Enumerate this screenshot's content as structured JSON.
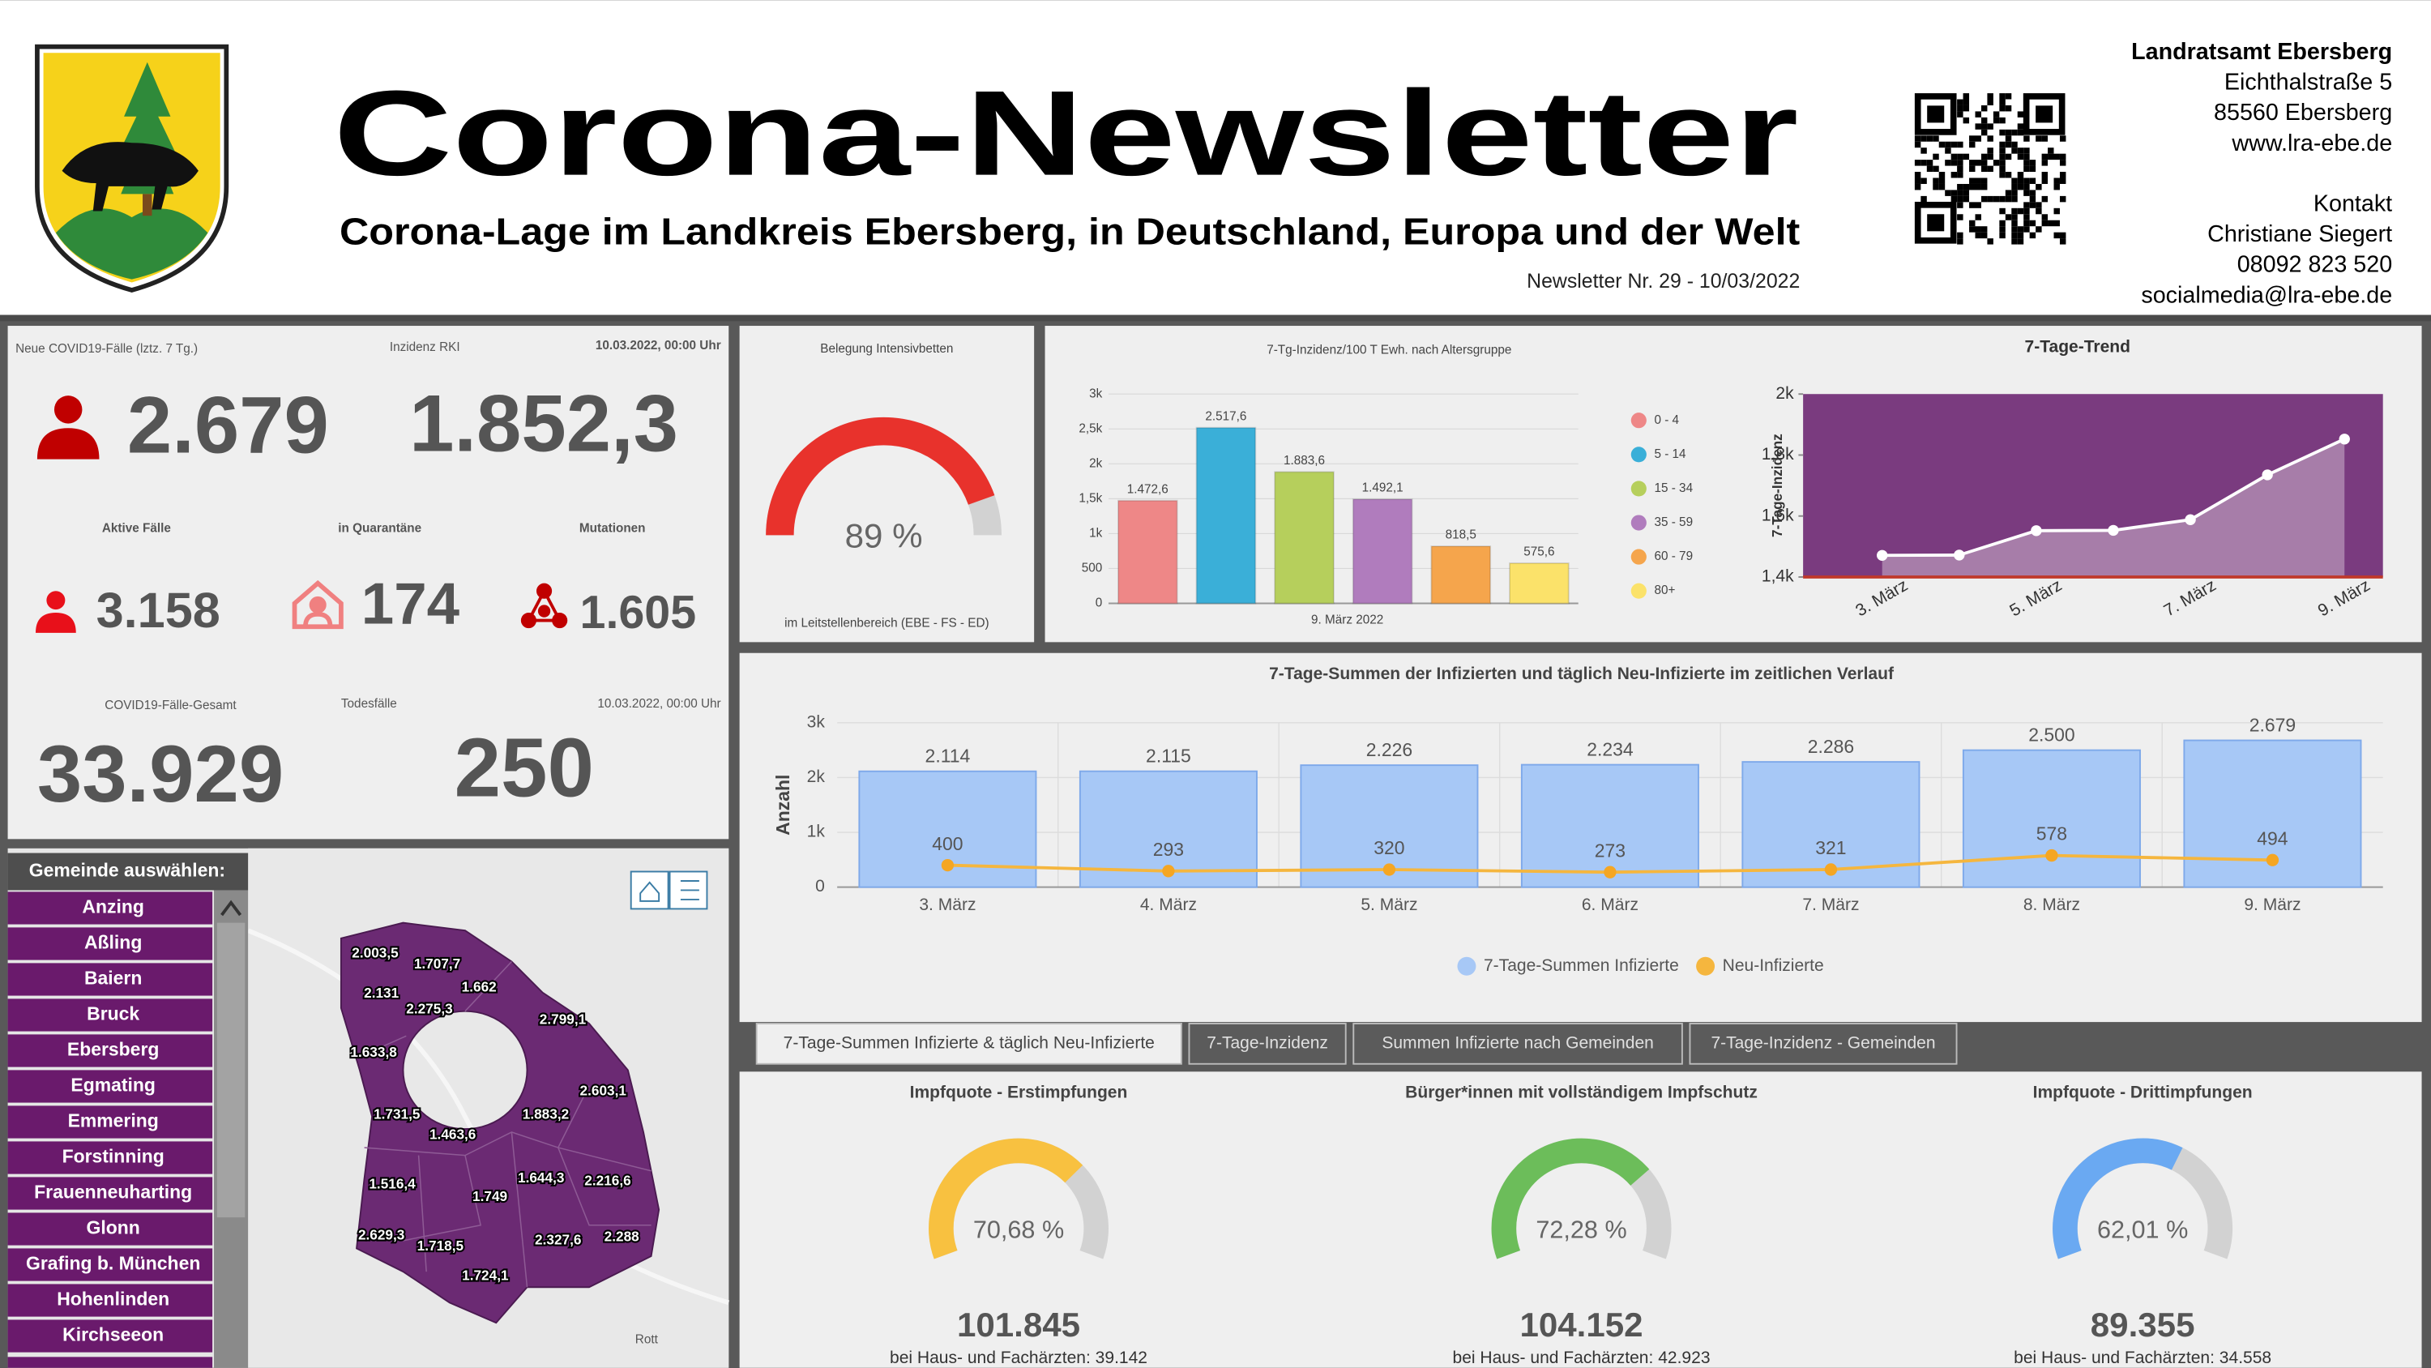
{
  "header": {
    "title": "Corona-Newsletter",
    "subtitle": "Corona-Lage im Landkreis Ebersberg, in Deutschland, Europa und der Welt",
    "issue": "Newsletter Nr. 29 - 10/03/2022",
    "address": [
      "Landratsamt Ebersberg",
      "Eichthalstraße 5",
      "85560 Ebersberg",
      "www.lra-ebe.de"
    ],
    "contact": [
      "Kontakt",
      "Christiane Siegert",
      "08092 823 520",
      "socialmedia@lra-ebe.de"
    ]
  },
  "cases_panel": {
    "new_cases_label": "Neue COVID19-Fälle (lztz. 7 Tg.)",
    "incidence_label": "Inzidenz RKI",
    "timestamp": "10.03.2022, 00:00 Uhr",
    "new_cases": "2.679",
    "incidence": "1.852,3",
    "active_label": "Aktive Fälle",
    "active": "3.158",
    "quarantine_label": "in Quarantäne",
    "quarantine": "174",
    "mutations_label": "Mutationen",
    "mutations": "1.605",
    "total_label": "COVID19-Fälle-Gesamt",
    "total": "33.929",
    "deaths_label": "Todesfälle",
    "deaths": "250",
    "timestamp_2": "10.03.2022, 00:00 Uhr"
  },
  "icu": {
    "type": "gauge",
    "title": "Belegung Intensivbetten",
    "value": 89,
    "value_label": "89 %",
    "color": "#e8322c",
    "footnote": "im Leitstellenbereich (EBE - FS - ED)"
  },
  "age_chart": {
    "type": "bar",
    "title": "7-Tg-Inzidenz/100 T Ewh. nach Altersgruppe",
    "categories": [
      "0 - 4",
      "5 - 14",
      "15 - 34",
      "35 - 59",
      "60 - 79",
      "80+"
    ],
    "values": [
      1472.6,
      2517.6,
      1883.6,
      1492.1,
      818.5,
      575.6
    ],
    "value_labels": [
      "1.472,6",
      "2.517,6",
      "1.883,6",
      "1.492,1",
      "818,5",
      "575,6"
    ],
    "colors": [
      "#ee8787",
      "#3aafd8",
      "#b6cf5c",
      "#b07cbd",
      "#f5a54c",
      "#fbe26a"
    ],
    "xlabel": "9. März 2022",
    "ylim": [
      0,
      3000
    ],
    "yticks": [
      0,
      500,
      {
        "value": 1000,
        "label": "1k"
      },
      {
        "value": 1500,
        "label": "1,5k"
      },
      {
        "value": 2000,
        "label": "2k"
      },
      {
        "value": 2500,
        "label": "2,5k"
      },
      {
        "value": 3000,
        "label": "3k"
      }
    ],
    "grid": true
  },
  "trend_chart": {
    "type": "area",
    "title": "7-Tage-Trend",
    "ylabel": "7-Tage-Inzidenz",
    "categories": [
      "3. März",
      null,
      "5. März",
      null,
      "7. März",
      null,
      "9. März"
    ],
    "values": [
      1471,
      1472,
      1552,
      1553,
      1588,
      1735,
      1852.3
    ],
    "ylim": [
      1400,
      2000
    ],
    "yticks": [
      {
        "value": 1400,
        "label": "1,4k"
      },
      {
        "value": 1600,
        "label": "1,6k"
      },
      {
        "value": 1800,
        "label": "1,8k"
      },
      {
        "value": 2000,
        "label": "2k"
      }
    ],
    "color": "#ffffff"
  },
  "combo_chart": {
    "type": "bar-line",
    "title": "7-Tage-Summen der Infizierten und täglich Neu-Infizierte im zeitlichen Verlauf",
    "ylabel": "Anzahl",
    "categories": [
      "3. März",
      "4. März",
      "5. März",
      "6. März",
      "7. März",
      "8. März",
      "9. März"
    ],
    "series": [
      {
        "name": "7-Tage-Summen Infizierte",
        "color": "#a7c8f6",
        "values": [
          2114,
          2115,
          2226,
          2234,
          2286,
          2500,
          2679
        ],
        "value_labels": [
          "2.114",
          "2.115",
          "2.226",
          "2.234",
          "2.286",
          "2.500",
          "2.679"
        ]
      },
      {
        "name": "Neu-Infizierte",
        "color": "#f5b63e",
        "values": [
          400,
          293,
          320,
          273,
          321,
          578,
          494
        ]
      }
    ],
    "ylim": [
      0,
      3000
    ],
    "yticks": [
      0,
      {
        "value": 1000,
        "label": "1k"
      },
      {
        "value": 2000,
        "label": "2k"
      },
      {
        "value": 3000,
        "label": "3k"
      }
    ],
    "grid": true
  },
  "tabs": [
    "7-Tage-Summen Infizierte & täglich Neu-Infizierte",
    "7-Tage-Inzidenz",
    "Summen Infizierte nach Gemeinden",
    "7-Tage-Inzidenz - Gemeinden"
  ],
  "vaccination": [
    {
      "type": "gauge",
      "title": "Impfquote  - Erstimpfungen",
      "value": 70.68,
      "value_label": "70,68 %",
      "color": "#f8c140",
      "count": "101.845",
      "sub": "bei Haus- und Fachärzten: 39.142"
    },
    {
      "type": "gauge",
      "title": "Bürger*innen mit vollständigem Impfschutz",
      "value": 72.28,
      "value_label": "72,28 %",
      "color": "#6cbd5a",
      "count": "104.152",
      "sub": "bei Haus- und Fachärzten: 42.923"
    },
    {
      "type": "gauge",
      "title": "Impfquote  - Drittimpfungen",
      "value": 62.01,
      "value_label": "62,01 %",
      "color": "#6aa9f2",
      "count": "89.355",
      "sub": "bei Haus- und Fachärzten: 34.558"
    }
  ],
  "municipality_selector": {
    "title": "Gemeinde auswählen:",
    "items": [
      "Anzing",
      "Aßling",
      "Baiern",
      "Bruck",
      "Ebersberg",
      "Egmating",
      "Emmering",
      "Forstinning",
      "Frauenneuharting",
      "Glonn",
      "Grafing b. München",
      "Hohenlinden",
      "Kirchseeon"
    ]
  },
  "map": {
    "labels": [
      "2.003,5",
      "1.707,7",
      "1.662",
      "2.131",
      "2.275,3",
      "2.799,1",
      "1.633,8",
      "2.603,1",
      "1.731,5",
      "1.883,2",
      "1.463,6",
      "1.644,3",
      "2.216,6",
      "1.516,4",
      "1.749",
      "2.629,3",
      "1.718,5",
      "2.327,6",
      "2.288",
      "1.724,1"
    ],
    "places": [
      "Rott"
    ]
  }
}
